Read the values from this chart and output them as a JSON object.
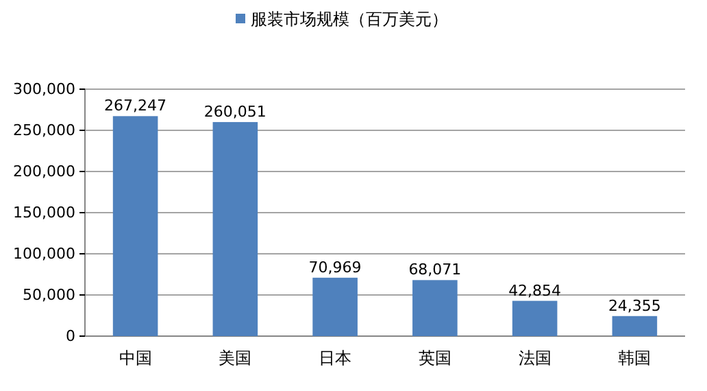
{
  "chart_data": {
    "type": "bar",
    "categories": [
      "中国",
      "美国",
      "日本",
      "英国",
      "法国",
      "韩国"
    ],
    "series": [
      {
        "name": "服装市场规模（百万美元）",
        "color": "#4f81bd",
        "values": [
          267247,
          260051,
          70969,
          68071,
          42854,
          24355
        ],
        "value_labels": [
          "267,247",
          "260,051",
          "70,969",
          "68,071",
          "42,854",
          "24,355"
        ]
      }
    ],
    "ylim": [
      0,
      300000
    ],
    "yticks": [
      0,
      {
        "value": 50000,
        "label": "50,000"
      },
      {
        "value": 100000,
        "label": "100,000"
      },
      {
        "value": 150000,
        "label": "150,000"
      },
      {
        "value": 200000,
        "label": "200,000"
      },
      {
        "value": 250000,
        "label": "250,000"
      },
      {
        "value": 300000,
        "label": "300,000"
      }
    ],
    "grid": "y",
    "legend": "top"
  }
}
